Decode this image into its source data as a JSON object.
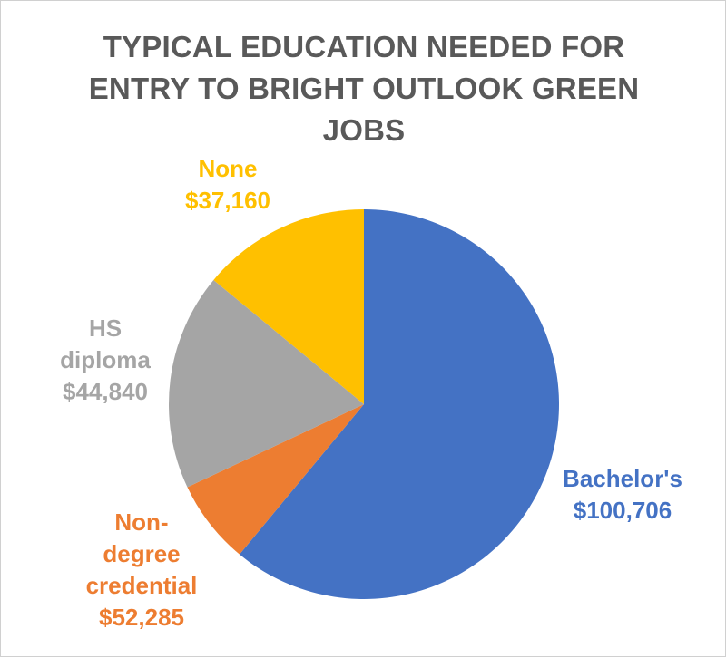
{
  "chart_data": {
    "type": "pie",
    "title_lines": [
      "TYPICAL EDUCATION NEEDED FOR",
      "ENTRY TO BRIGHT OUTLOOK GREEN",
      "JOBS"
    ],
    "slices": [
      {
        "label_lines": [
          "Bachelor's"
        ],
        "value_label": "$100,706",
        "share": 0.61,
        "color": "#4472C4"
      },
      {
        "label_lines": [
          "Non-",
          "degree",
          "credential"
        ],
        "value_label": "$52,285",
        "share": 0.07,
        "color": "#ED7D31"
      },
      {
        "label_lines": [
          "HS",
          "diploma"
        ],
        "value_label": "$44,840",
        "share": 0.18,
        "color": "#A5A5A5"
      },
      {
        "label_lines": [
          "None"
        ],
        "value_label": "$37,160",
        "share": 0.14,
        "color": "#FFC000"
      }
    ]
  }
}
